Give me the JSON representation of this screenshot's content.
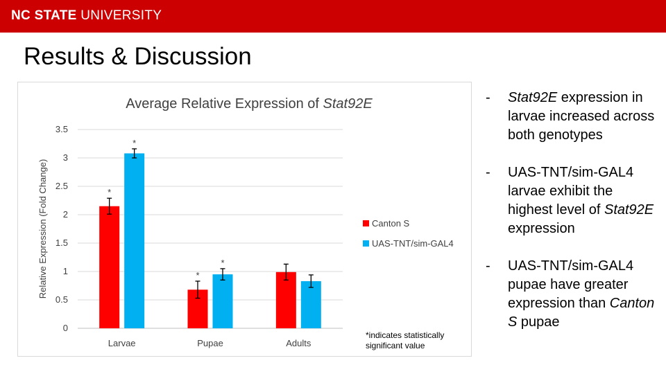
{
  "header": {
    "brand_bold": "NC STATE",
    "brand_light": "UNIVERSITY",
    "bar_color": "#cc0000"
  },
  "slide_title": "Results & Discussion",
  "chart_data": {
    "type": "bar",
    "title_prefix": "Average Relative Expression of ",
    "title_italic": "Stat92E",
    "categories": [
      "Larvae",
      "Pupae",
      "Adults"
    ],
    "series": [
      {
        "name": "Canton S",
        "color": "#ff0000",
        "values": [
          2.15,
          0.68,
          0.99
        ],
        "errors": [
          0.14,
          0.15,
          0.14
        ],
        "significant": [
          true,
          true,
          false
        ]
      },
      {
        "name": "UAS-TNT/sim-GAL4",
        "color": "#00b0f0",
        "values": [
          3.08,
          0.95,
          0.83
        ],
        "errors": [
          0.08,
          0.1,
          0.11
        ],
        "significant": [
          true,
          true,
          false
        ]
      }
    ],
    "ylabel": "Relative Expression (Fold Change)",
    "xlabel": "",
    "ylim": [
      0,
      3.5
    ],
    "yticks": [
      "0",
      "0.5",
      "1",
      "1.5",
      "2",
      "2.5",
      "3",
      "3.5"
    ],
    "grid": true,
    "legend_position": "right",
    "significance_marker": "*"
  },
  "footnote": "*indicates statistically significant value",
  "bullets": {
    "b1_italic": "Stat92E",
    "b1_rest": " expression in larvae increased across both genotypes",
    "b2_text": "UAS-TNT/sim-GAL4 larvae exhibit the highest level of ",
    "b2_italic": "Stat92E",
    "b2_end": " expression",
    "b3_text": "UAS-TNT/sim-GAL4 pupae have greater expression than ",
    "b3_italic": "Canton S",
    "b3_end": " pupae",
    "dash": "-"
  }
}
